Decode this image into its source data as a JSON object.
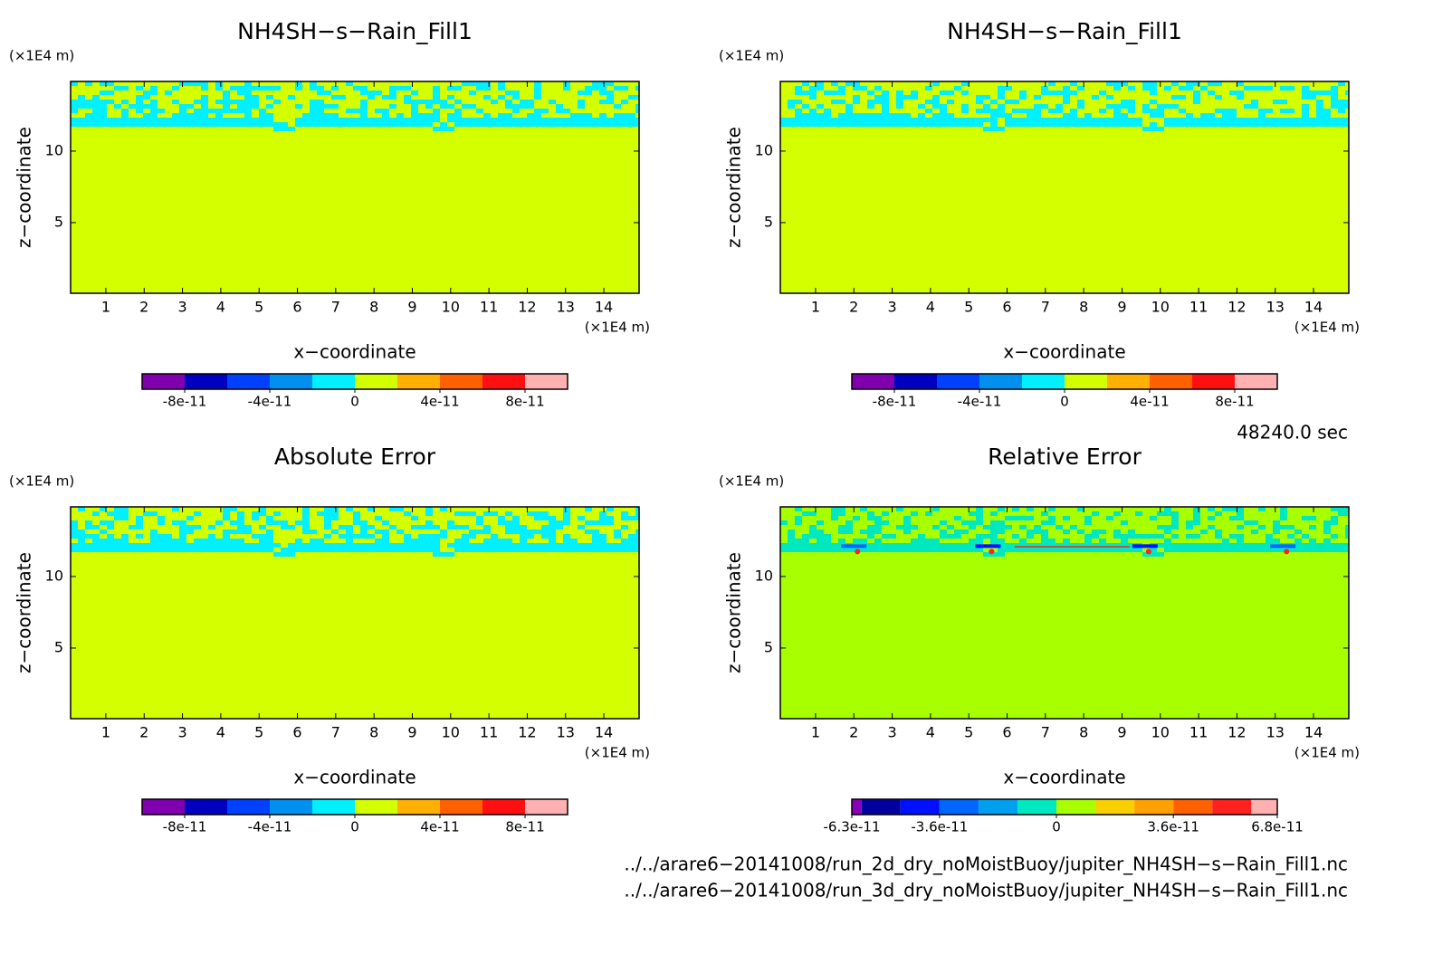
{
  "chart_data": [
    {
      "type": "contour",
      "title": "NH4SH−s−Rain_Fill1",
      "xlabel": "x−coordinate",
      "ylabel": "z−coordinate",
      "x_unit": "(×1E4 m)",
      "y_unit": "(×1E4 m)",
      "xlim": [
        0.08,
        14.92
      ],
      "ylim": [
        0.06,
        14.87
      ],
      "xticks": [
        1,
        2,
        3,
        4,
        5,
        6,
        7,
        8,
        9,
        10,
        11,
        12,
        13,
        14
      ],
      "yticks": [
        5,
        10
      ],
      "colorbar": {
        "boundaries": [
          -1e-10,
          -8e-11,
          -6e-11,
          -4e-11,
          -2e-11,
          0,
          2e-11,
          4e-11,
          6e-11,
          8e-11,
          1e-10
        ],
        "colors": [
          "#8000b0",
          "#0000c0",
          "#0040ff",
          "#0090f0",
          "#00f0ff",
          "#d4ff00",
          "#ffb000",
          "#ff6000",
          "#ff1010",
          "#ffb0b0"
        ],
        "ticks": [
          -8e-11,
          -4e-11,
          0,
          4e-11,
          8e-11
        ]
      }
    },
    {
      "type": "contour",
      "title": "NH4SH−s−Rain_Fill1",
      "xlabel": "x−coordinate",
      "ylabel": "z−coordinate",
      "x_unit": "(×1E4 m)",
      "y_unit": "(×1E4 m)",
      "xlim": [
        0.08,
        14.92
      ],
      "ylim": [
        0.06,
        14.87
      ],
      "xticks": [
        1,
        2,
        3,
        4,
        5,
        6,
        7,
        8,
        9,
        10,
        11,
        12,
        13,
        14
      ],
      "yticks": [
        5,
        10
      ],
      "colorbar": {
        "boundaries": [
          -1e-10,
          -8e-11,
          -6e-11,
          -4e-11,
          -2e-11,
          0,
          2e-11,
          4e-11,
          6e-11,
          8e-11,
          1e-10
        ],
        "colors": [
          "#8000b0",
          "#0000c0",
          "#0040ff",
          "#0090f0",
          "#00f0ff",
          "#d4ff00",
          "#ffb000",
          "#ff6000",
          "#ff1010",
          "#ffb0b0"
        ],
        "ticks": [
          -8e-11,
          -4e-11,
          0,
          4e-11,
          8e-11
        ]
      }
    },
    {
      "type": "contour",
      "title": "Absolute Error",
      "xlabel": "x−coordinate",
      "ylabel": "z−coordinate",
      "x_unit": "(×1E4 m)",
      "y_unit": "(×1E4 m)",
      "xlim": [
        0.08,
        14.92
      ],
      "ylim": [
        0.06,
        14.87
      ],
      "xticks": [
        1,
        2,
        3,
        4,
        5,
        6,
        7,
        8,
        9,
        10,
        11,
        12,
        13,
        14
      ],
      "yticks": [
        5,
        10
      ],
      "colorbar": {
        "boundaries": [
          -1e-10,
          -8e-11,
          -6e-11,
          -4e-11,
          -2e-11,
          0,
          2e-11,
          4e-11,
          6e-11,
          8e-11,
          1e-10
        ],
        "colors": [
          "#8000b0",
          "#0000c0",
          "#0040ff",
          "#0090f0",
          "#00f0ff",
          "#d4ff00",
          "#ffb000",
          "#ff6000",
          "#ff1010",
          "#ffb0b0"
        ],
        "ticks": [
          -8e-11,
          -4e-11,
          0,
          4e-11,
          8e-11
        ]
      }
    },
    {
      "type": "contour",
      "title": "Relative Error",
      "xlabel": "x−coordinate",
      "ylabel": "z−coordinate",
      "x_unit": "(×1E4 m)",
      "y_unit": "(×1E4 m)",
      "xlim": [
        0.08,
        14.92
      ],
      "ylim": [
        0.06,
        14.87
      ],
      "xticks": [
        1,
        2,
        3,
        4,
        5,
        6,
        7,
        8,
        9,
        10,
        11,
        12,
        13,
        14
      ],
      "yticks": [
        5,
        10
      ],
      "colorbar": {
        "boundaries": [
          -6.3e-11,
          -6e-11,
          -4.8e-11,
          -3.6e-11,
          -2.4e-11,
          -1.2e-11,
          0,
          1.2e-11,
          2.4e-11,
          3.6e-11,
          4.8e-11,
          6e-11,
          6.8e-11
        ],
        "colors": [
          "#8800b8",
          "#0000a0",
          "#0010ff",
          "#0066ff",
          "#00a0f0",
          "#00e8c0",
          "#a8ff00",
          "#f8d000",
          "#ffa000",
          "#ff6000",
          "#ff2020",
          "#ffb0b0"
        ],
        "ticks": [
          -6.3e-11,
          -3.6e-11,
          0,
          3.6e-11,
          6.8e-11
        ]
      }
    }
  ],
  "time": "48240.0 sec",
  "files": [
    "../../arare6−20141008/run_2d_dry_noMoistBuoy/jupiter_NH4SH−s−Rain_Fill1.nc",
    "../../arare6−20141008/run_3d_dry_noMoistBuoy/jupiter_NH4SH−s−Rain_Fill1.nc"
  ]
}
